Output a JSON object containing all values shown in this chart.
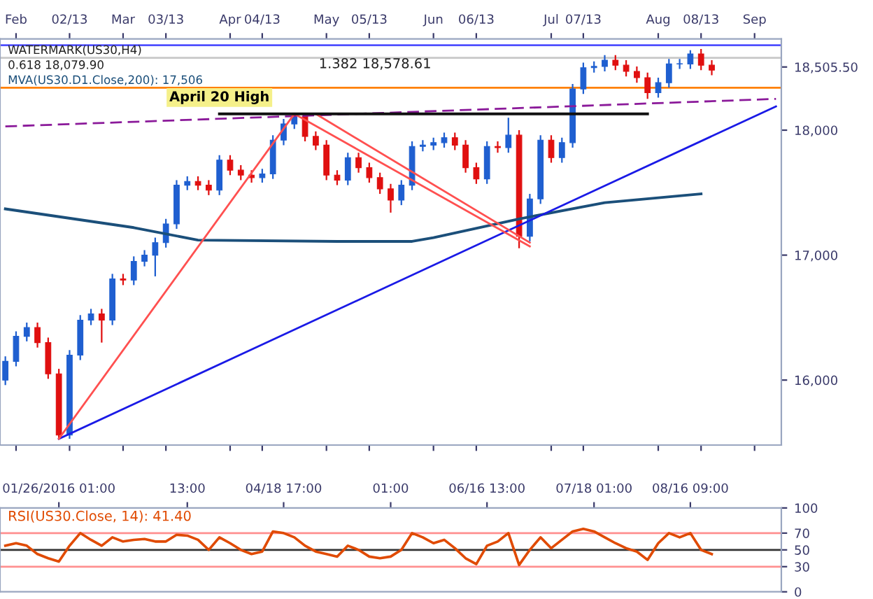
{
  "chart_data": [
    {
      "type": "candlestick",
      "categories": [
        null,
        "Feb",
        null,
        null,
        null,
        null,
        "02/13",
        null,
        null,
        null,
        null,
        "Mar",
        null,
        null,
        null,
        "03/13",
        null,
        null,
        null,
        null,
        null,
        "Apr",
        null,
        null,
        "04/13",
        null,
        null,
        null,
        null,
        null,
        "May",
        null,
        null,
        null,
        "05/13",
        null,
        null,
        null,
        null,
        null,
        "Jun",
        null,
        null,
        null,
        "06/13",
        null,
        null,
        null,
        null,
        null,
        null,
        "Jul",
        null,
        null,
        "07/13",
        null,
        null,
        null,
        null,
        null,
        null,
        "Aug",
        null,
        null,
        null,
        "08/13",
        null,
        null,
        null,
        null,
        "Sep",
        null,
        null
      ],
      "ohlc": [
        [
          16000,
          16190,
          15960,
          16150
        ],
        [
          16150,
          16390,
          16110,
          16350
        ],
        [
          16350,
          16460,
          16310,
          16420
        ],
        [
          16420,
          16460,
          16260,
          16300
        ],
        [
          16300,
          16340,
          16010,
          16050
        ],
        [
          16050,
          16090,
          15530,
          15560
        ],
        [
          15560,
          16240,
          15530,
          16200
        ],
        [
          16200,
          16520,
          16160,
          16480
        ],
        [
          16480,
          16570,
          16440,
          16530
        ],
        [
          16530,
          16570,
          16300,
          16480
        ],
        [
          16480,
          16850,
          16440,
          16810
        ],
        [
          16810,
          16850,
          16760,
          16800
        ],
        [
          16800,
          16990,
          16760,
          16950
        ],
        [
          16950,
          17040,
          16910,
          17000
        ],
        [
          17000,
          17140,
          16830,
          17100
        ],
        [
          17100,
          17290,
          17060,
          17250
        ],
        [
          17250,
          17600,
          17210,
          17560
        ],
        [
          17560,
          17630,
          17520,
          17590
        ],
        [
          17590,
          17630,
          17520,
          17560
        ],
        [
          17560,
          17600,
          17480,
          17520
        ],
        [
          17520,
          17800,
          17480,
          17760
        ],
        [
          17760,
          17800,
          17640,
          17680
        ],
        [
          17680,
          17720,
          17600,
          17640
        ],
        [
          17640,
          17680,
          17580,
          17620
        ],
        [
          17620,
          17690,
          17580,
          17650
        ],
        [
          17650,
          17960,
          17610,
          17920
        ],
        [
          17920,
          18090,
          17880,
          18050
        ],
        [
          18050,
          18130,
          18010,
          18110
        ],
        [
          18110,
          18120,
          17910,
          17950
        ],
        [
          17950,
          17990,
          17840,
          17880
        ],
        [
          17880,
          17920,
          17600,
          17640
        ],
        [
          17640,
          17680,
          17560,
          17600
        ],
        [
          17600,
          17820,
          17560,
          17780
        ],
        [
          17780,
          17820,
          17660,
          17700
        ],
        [
          17700,
          17740,
          17580,
          17620
        ],
        [
          17620,
          17660,
          17490,
          17530
        ],
        [
          17530,
          17570,
          17340,
          17440
        ],
        [
          17440,
          17600,
          17400,
          17560
        ],
        [
          17560,
          17910,
          17520,
          17870
        ],
        [
          17870,
          17920,
          17830,
          17880
        ],
        [
          17880,
          17940,
          17840,
          17900
        ],
        [
          17900,
          17980,
          17860,
          17940
        ],
        [
          17940,
          17980,
          17840,
          17880
        ],
        [
          17880,
          17920,
          17660,
          17700
        ],
        [
          17700,
          17740,
          17570,
          17610
        ],
        [
          17610,
          17910,
          17570,
          17870
        ],
        [
          17870,
          17910,
          17820,
          17860
        ],
        [
          17860,
          18100,
          17820,
          17960
        ],
        [
          17960,
          18000,
          17055,
          17150
        ],
        [
          17150,
          17490,
          17110,
          17450
        ],
        [
          17450,
          17960,
          17410,
          17920
        ],
        [
          17920,
          17960,
          17740,
          17780
        ],
        [
          17780,
          17940,
          17740,
          17900
        ],
        [
          17900,
          18370,
          17860,
          18330
        ],
        [
          18330,
          18540,
          18290,
          18500
        ],
        [
          18500,
          18550,
          18460,
          18510
        ],
        [
          18510,
          18600,
          18470,
          18560
        ],
        [
          18560,
          18600,
          18480,
          18520
        ],
        [
          18520,
          18560,
          18430,
          18470
        ],
        [
          18470,
          18510,
          18380,
          18420
        ],
        [
          18420,
          18460,
          18250,
          18300
        ],
        [
          18300,
          18420,
          18260,
          18380
        ],
        [
          18380,
          18570,
          18340,
          18530
        ],
        [
          18530,
          18570,
          18490,
          18530
        ],
        [
          18530,
          18640,
          18490,
          18610
        ],
        [
          18610,
          18650,
          18480,
          18520
        ],
        [
          18520,
          18560,
          18440,
          18480
        ],
        null,
        null,
        null,
        null,
        null,
        null
      ],
      "series": [
        {
          "type": "line",
          "name": "MVA(US30.D1.Close,200): 17,506",
          "color": "#1b4f7a",
          "values": [
            17370,
            null,
            null,
            null,
            null,
            null,
            null,
            null,
            null,
            null,
            null,
            null,
            17220,
            null,
            null,
            null,
            null,
            null,
            17120,
            null,
            null,
            null,
            null,
            null,
            null,
            null,
            null,
            null,
            null,
            null,
            null,
            17110,
            null,
            null,
            null,
            null,
            null,
            null,
            17110,
            null,
            17140,
            null,
            null,
            null,
            null,
            null,
            null,
            null,
            17290,
            null,
            null,
            null,
            null,
            null,
            null,
            null,
            17420,
            null,
            null,
            null,
            null,
            null,
            null,
            null,
            null,
            17490,
            null,
            null,
            null,
            null,
            null,
            null,
            null
          ]
        },
        {
          "type": "line",
          "color": "#1a1ae6",
          "values": [
            null,
            null,
            null,
            null,
            null,
            15530,
            null,
            null,
            null,
            null,
            null,
            null,
            null,
            null,
            null,
            null,
            null,
            null,
            null,
            null,
            null,
            null,
            null,
            null,
            null,
            null,
            null,
            null,
            null,
            null,
            null,
            null,
            null,
            null,
            null,
            null,
            null,
            null,
            null,
            null,
            null,
            null,
            null,
            null,
            null,
            null,
            null,
            null,
            null,
            null,
            null,
            null,
            null,
            null,
            null,
            null,
            null,
            null,
            null,
            null,
            null,
            null,
            null,
            null,
            null,
            null,
            null,
            null,
            null,
            null,
            null,
            null,
            18190
          ]
        },
        {
          "type": "line",
          "color": "#8b1a9a",
          "line_style": "dashed",
          "values": [
            18030,
            null,
            null,
            null,
            null,
            null,
            null,
            null,
            null,
            null,
            null,
            null,
            null,
            null,
            null,
            null,
            null,
            null,
            null,
            null,
            null,
            null,
            null,
            null,
            null,
            null,
            null,
            null,
            null,
            null,
            null,
            null,
            null,
            null,
            null,
            null,
            null,
            null,
            null,
            null,
            null,
            null,
            null,
            null,
            null,
            null,
            null,
            null,
            null,
            null,
            null,
            null,
            null,
            null,
            null,
            null,
            null,
            null,
            null,
            null,
            null,
            null,
            null,
            null,
            null,
            null,
            null,
            null,
            null,
            null,
            null,
            null,
            18250
          ]
        },
        {
          "type": "line",
          "color": "#ff5050",
          "values": [
            null,
            null,
            null,
            null,
            null,
            15530,
            null,
            null,
            null,
            null,
            null,
            null,
            null,
            null,
            null,
            null,
            null,
            null,
            null,
            null,
            null,
            null,
            null,
            null,
            null,
            null,
            null,
            18130,
            null,
            null,
            null,
            null,
            null,
            null,
            null,
            null,
            null,
            null,
            null,
            null,
            null,
            null,
            null,
            null,
            null,
            null,
            null,
            null,
            null,
            null,
            null,
            null,
            null,
            null,
            null,
            null,
            null,
            null,
            null,
            null,
            null,
            null,
            null,
            null,
            null,
            null,
            null,
            null,
            null,
            null,
            null,
            null,
            null
          ]
        },
        {
          "type": "line",
          "color": "#ff5050",
          "values": [
            null,
            null,
            null,
            null,
            null,
            null,
            null,
            null,
            null,
            null,
            null,
            null,
            null,
            null,
            null,
            null,
            null,
            null,
            null,
            null,
            null,
            null,
            null,
            null,
            null,
            null,
            null,
            18130,
            null,
            null,
            null,
            null,
            null,
            null,
            null,
            null,
            null,
            null,
            null,
            null,
            null,
            null,
            null,
            null,
            null,
            null,
            null,
            null,
            null,
            17070,
            null,
            null,
            null,
            null,
            null,
            null,
            null,
            null,
            null,
            null,
            null,
            null,
            null,
            null,
            null,
            null,
            null,
            null,
            null,
            null,
            null,
            null,
            null
          ]
        },
        {
          "type": "line",
          "color": "#ff5050",
          "values": [
            null,
            null,
            null,
            null,
            null,
            null,
            null,
            null,
            null,
            null,
            null,
            null,
            null,
            null,
            null,
            null,
            null,
            null,
            null,
            null,
            null,
            null,
            null,
            null,
            null,
            null,
            null,
            null,
            null,
            18130,
            null,
            null,
            null,
            null,
            null,
            null,
            null,
            null,
            null,
            null,
            null,
            null,
            null,
            null,
            null,
            null,
            null,
            null,
            null,
            17100,
            null,
            null,
            null,
            null,
            null,
            null,
            null,
            null,
            null,
            null,
            null,
            null,
            null,
            null,
            null,
            null,
            null,
            null,
            null,
            null,
            null,
            null,
            null
          ]
        },
        {
          "type": "line",
          "name": "April 20 High",
          "color": "#111111",
          "values": [
            null,
            null,
            null,
            null,
            null,
            null,
            null,
            null,
            null,
            null,
            null,
            null,
            null,
            null,
            null,
            null,
            null,
            null,
            null,
            null,
            18130,
            null,
            null,
            null,
            null,
            null,
            null,
            null,
            null,
            null,
            null,
            null,
            null,
            null,
            null,
            null,
            null,
            null,
            null,
            null,
            null,
            null,
            null,
            null,
            null,
            null,
            null,
            null,
            null,
            null,
            null,
            null,
            null,
            null,
            null,
            null,
            null,
            null,
            null,
            null,
            18130,
            null,
            null,
            null,
            null,
            null,
            null,
            null,
            null,
            null,
            null,
            null,
            null
          ]
        }
      ],
      "ylim": [
        15480,
        18730
      ],
      "yticks": [
        {
          "value": 16000,
          "label": "16,000"
        },
        {
          "value": 17000,
          "label": "17,000"
        },
        {
          "value": 18000,
          "label": "18,000"
        },
        {
          "value": 18505.5,
          "label": "18,505.50"
        }
      ],
      "ref_lines": [
        {
          "axis": "y",
          "value": 18340,
          "color": "#ff8000"
        },
        {
          "axis": "y",
          "value": 18680,
          "color": "#5050ff"
        },
        {
          "axis": "y",
          "value": 18578.61,
          "label": "1.382 18,578.61",
          "color": "#c8c8c8"
        }
      ],
      "annotations": [
        "WATERMARK(US30,H4)",
        "0.618 18,079.90"
      ],
      "grid": false
    },
    {
      "type": "line",
      "title": "RSI(US30.Close, 14): 41.40",
      "categories": [
        null,
        null,
        null,
        null,
        null,
        "01/26/2016 01:00",
        null,
        null,
        null,
        null,
        null,
        null,
        null,
        null,
        null,
        null,
        null,
        "13:00",
        null,
        null,
        null,
        null,
        null,
        null,
        null,
        null,
        "04/18 17:00",
        null,
        null,
        null,
        null,
        null,
        null,
        null,
        null,
        null,
        "01:00",
        null,
        null,
        null,
        null,
        null,
        null,
        null,
        null,
        "06/16 13:00",
        null,
        null,
        null,
        null,
        null,
        null,
        null,
        null,
        null,
        "07/18 01:00",
        null,
        null,
        null,
        null,
        null,
        null,
        null,
        null,
        "08/16 09:00",
        null,
        null,
        null,
        null,
        null,
        null,
        null,
        null
      ],
      "series": [
        {
          "color": "#e04a00",
          "values": [
            55,
            58,
            55,
            45,
            40,
            36,
            55,
            70,
            62,
            55,
            65,
            60,
            62,
            63,
            60,
            60,
            68,
            67,
            62,
            50,
            65,
            58,
            50,
            45,
            48,
            72,
            70,
            65,
            55,
            48,
            45,
            42,
            55,
            50,
            42,
            40,
            42,
            50,
            70,
            65,
            58,
            62,
            52,
            40,
            33,
            55,
            60,
            70,
            32,
            50,
            65,
            52,
            62,
            72,
            75,
            72,
            65,
            58,
            52,
            48,
            38,
            58,
            70,
            65,
            70,
            50,
            45,
            null,
            null,
            null,
            null,
            null,
            null
          ]
        }
      ],
      "ylim": [
        0,
        100
      ],
      "yticks": [
        0,
        30,
        50,
        70,
        100
      ],
      "ref_lines": [
        {
          "axis": "y",
          "value": 30,
          "color": "#ff9090"
        },
        {
          "axis": "y",
          "value": 50,
          "color": "#333333"
        },
        {
          "axis": "y",
          "value": 70,
          "color": "#ff9090"
        }
      ],
      "grid": false
    }
  ]
}
